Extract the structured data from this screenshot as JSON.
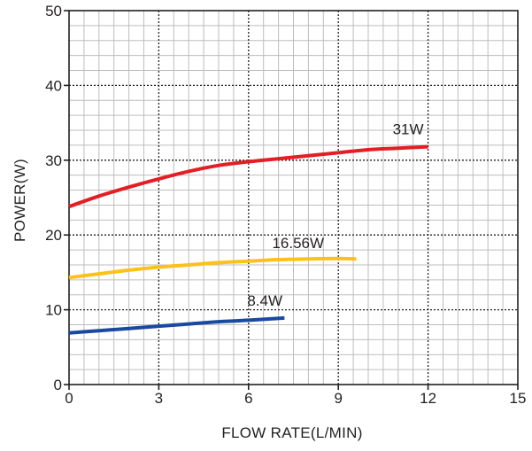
{
  "chart_data": {
    "type": "line",
    "title": "",
    "xlabel": "FLOW  RATE(L/MIN)",
    "ylabel": "POWER(W)",
    "xlim": [
      0,
      15
    ],
    "ylim": [
      0,
      50
    ],
    "x_major_ticks": [
      0,
      3,
      6,
      9,
      12,
      15
    ],
    "y_major_ticks": [
      0,
      10,
      20,
      30,
      40,
      50
    ],
    "x_tick_labels": [
      "0",
      "3",
      "6",
      "9",
      "12",
      "15"
    ],
    "y_tick_labels": [
      "0",
      "10",
      "20",
      "30",
      "40",
      "50"
    ],
    "grid": true,
    "legend": "none",
    "series": [
      {
        "label": "31W",
        "color": "#e31e24",
        "x": [
          0,
          1,
          2,
          3,
          4,
          5,
          6,
          7,
          8,
          9,
          10,
          11,
          12
        ],
        "y": [
          23.8,
          25.2,
          26.4,
          27.5,
          28.5,
          29.3,
          29.8,
          30.2,
          30.6,
          31.0,
          31.4,
          31.6,
          31.8
        ]
      },
      {
        "label": "16.56W",
        "color": "#fcc219",
        "x": [
          0,
          1,
          2,
          3,
          4,
          5,
          6,
          7,
          8,
          9,
          9.6
        ],
        "y": [
          14.3,
          14.8,
          15.3,
          15.7,
          16.0,
          16.3,
          16.5,
          16.7,
          16.8,
          16.85,
          16.8
        ]
      },
      {
        "label": "8.4W",
        "color": "#1a4aa0",
        "x": [
          0,
          1,
          2,
          3,
          4,
          5,
          6,
          7.2
        ],
        "y": [
          6.9,
          7.2,
          7.5,
          7.8,
          8.1,
          8.4,
          8.6,
          8.9
        ]
      }
    ]
  }
}
